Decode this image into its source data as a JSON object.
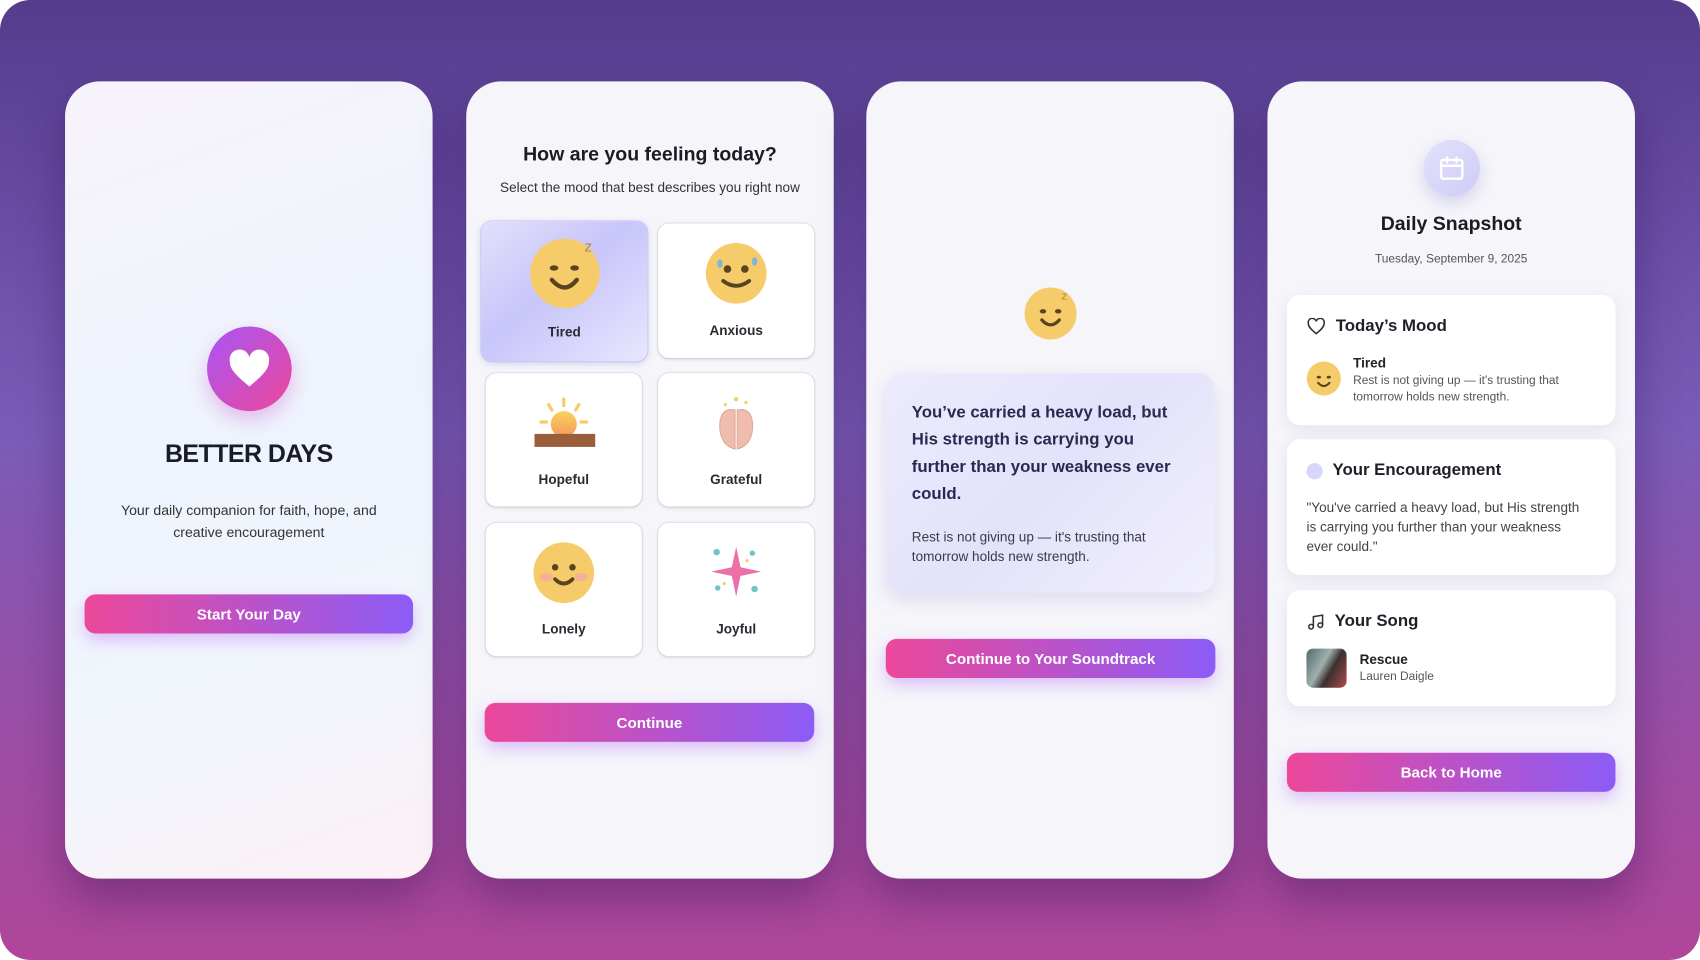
{
  "colors": {
    "accent_start": "#ec4899",
    "accent_end": "#8b5cf6",
    "emoji_yellow": "#f6cc6a",
    "lavender": "#d9d6fb"
  },
  "welcome": {
    "logo_icon": "heart-icon",
    "app_name": "BETTER DAYS",
    "tagline_line1": "Your daily companion for faith, hope, and",
    "tagline_line2": "creative encouragement",
    "start_button": "Start Your Day"
  },
  "mood": {
    "title": "How are you feeling today?",
    "subtitle": "Select the mood that best describes you right now",
    "options": [
      {
        "label": "Tired",
        "icon": "sleepy-face-icon",
        "selected": true
      },
      {
        "label": "Anxious",
        "icon": "sweat-face-icon",
        "selected": false
      },
      {
        "label": "Hopeful",
        "icon": "sunrise-icon",
        "selected": false
      },
      {
        "label": "Grateful",
        "icon": "praying-hands-icon",
        "selected": false
      },
      {
        "label": "Lonely",
        "icon": "blushing-face-icon",
        "selected": false
      },
      {
        "label": "Joyful",
        "icon": "sparkles-icon",
        "selected": false
      }
    ],
    "continue_button": "Continue"
  },
  "encouragement": {
    "icon": "sleepy-face-icon",
    "quote_lines": [
      "You’ve carried a heavy load, but",
      "His strength is carrying you",
      "further than your weakness ever",
      "could."
    ],
    "sub_lines": [
      "Rest is not giving up — it's trusting that",
      "tomorrow holds new strength."
    ],
    "continue_button": "Continue to Your Soundtrack"
  },
  "snapshot": {
    "icon": "calendar-icon",
    "title": "Daily Snapshot",
    "date": "Tuesday, September 9, 2025",
    "mood_card": {
      "heading": "Today’s Mood",
      "mood": "Tired",
      "text_line1": "Rest is not giving up — it's trusting that",
      "text_line2": "tomorrow holds new strength."
    },
    "encouragement_card": {
      "heading": "Your Encouragement",
      "text_line1": "\"You've carried a heavy load, but His strength",
      "text_line2": "is carrying you further than your weakness",
      "text_line3": "ever could.\""
    },
    "song_card": {
      "heading": "Your Song",
      "title": "Rescue",
      "artist": "Lauren Daigle"
    },
    "home_button": "Back to Home"
  }
}
